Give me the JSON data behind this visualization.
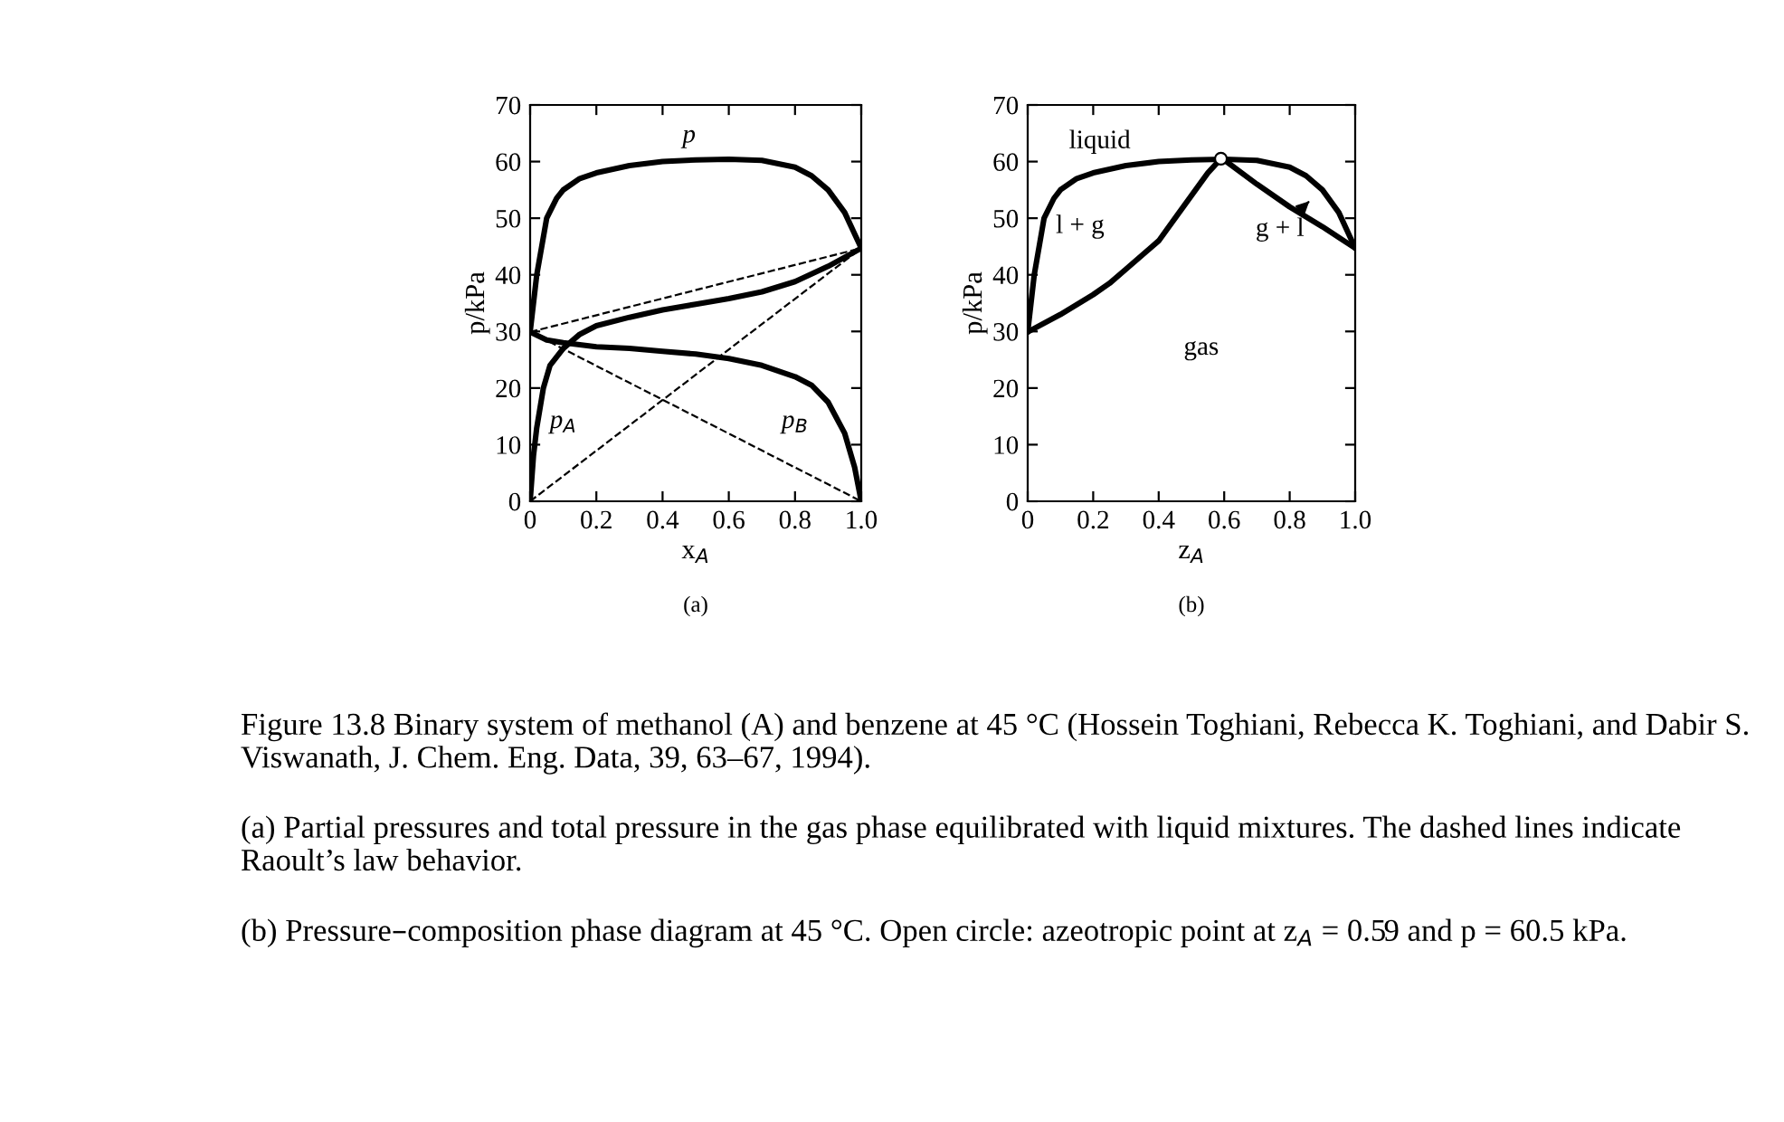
{
  "chart_data": [
    {
      "type": "line",
      "xlabel": "x$_{A}$",
      "ylabel": "p/kPa",
      "xlim": [
        0,
        1
      ],
      "ylim": [
        0,
        70
      ],
      "xticks": [
        0,
        0.2,
        0.4,
        0.6,
        0.8,
        {
          "value": 1,
          "label": "1.0"
        }
      ],
      "yticks": [
        0,
        10,
        20,
        30,
        40,
        50,
        60,
        70
      ],
      "grid": false,
      "series": [
        {
          "name": "p",
          "color": "#000000",
          "x": [
            0,
            0.02,
            0.05,
            0.08,
            0.1,
            0.15,
            0.2,
            0.3,
            0.4,
            0.5,
            0.6,
            0.7,
            0.8,
            0.85,
            0.9,
            0.95,
            1.0
          ],
          "values": [
            29.9,
            40,
            50,
            53.5,
            55,
            57,
            58,
            59.3,
            60,
            60.3,
            60.4,
            60.2,
            59,
            57.5,
            55,
            51,
            44.7
          ],
          "line_style": "solid"
        },
        {
          "name": "p$_{A}$",
          "color": "#000000",
          "x": [
            0,
            0.01,
            0.02,
            0.04,
            0.06,
            0.1,
            0.15,
            0.2,
            0.3,
            0.4,
            0.5,
            0.6,
            0.7,
            0.8,
            0.9,
            1.0
          ],
          "values": [
            0,
            8,
            13,
            20,
            24,
            27,
            29.5,
            31,
            32.5,
            33.8,
            34.8,
            35.8,
            37,
            38.8,
            41.5,
            44.7
          ],
          "line_style": "solid"
        },
        {
          "name": "p$_{B}$",
          "color": "#000000",
          "x": [
            0,
            0.05,
            0.1,
            0.2,
            0.3,
            0.4,
            0.5,
            0.6,
            0.7,
            0.8,
            0.85,
            0.9,
            0.95,
            0.98,
            1.0
          ],
          "values": [
            29.9,
            28.5,
            28,
            27.3,
            27,
            26.5,
            26,
            25.2,
            24,
            22,
            20.5,
            17.5,
            12,
            6,
            0
          ],
          "line_style": "solid"
        },
        {
          "color": "#000000",
          "x": [
            0,
            1
          ],
          "values": [
            29.9,
            44.7
          ],
          "line_style": "dashed"
        },
        {
          "color": "#000000",
          "x": [
            0,
            1
          ],
          "values": [
            29.9,
            0
          ],
          "line_style": "dashed"
        },
        {
          "color": "#000000",
          "x": [
            0,
            1
          ],
          "values": [
            0,
            44.7
          ],
          "line_style": "dashed"
        }
      ],
      "annotations": [
        "(a)"
      ]
    },
    {
      "type": "line",
      "xlabel": "z$_{A}$",
      "ylabel": "p/kPa",
      "xlim": [
        0,
        1
      ],
      "ylim": [
        0,
        70
      ],
      "xticks": [
        0,
        0.2,
        0.4,
        0.6,
        0.8,
        {
          "value": 1,
          "label": "1.0"
        }
      ],
      "yticks": [
        0,
        10,
        20,
        30,
        40,
        50,
        60,
        70
      ],
      "grid": false,
      "legend": false,
      "series": [
        {
          "color": "#000000",
          "x": [
            0,
            0.02,
            0.05,
            0.08,
            0.1,
            0.15,
            0.2,
            0.3,
            0.4,
            0.5,
            0.6,
            0.7,
            0.8,
            0.85,
            0.9,
            0.95,
            1.0
          ],
          "values": [
            29.9,
            40,
            50,
            53.5,
            55,
            57,
            58,
            59.3,
            60,
            60.3,
            60.4,
            60.2,
            59,
            57.5,
            55,
            51,
            44.7
          ]
        },
        {
          "color": "#000000",
          "x": [
            0,
            0.1,
            0.2,
            0.25,
            0.3,
            0.4,
            0.45,
            0.5,
            0.55,
            0.59,
            0.6,
            0.7,
            0.8,
            0.9,
            1.0
          ],
          "values": [
            29.9,
            33,
            36.5,
            38.5,
            41,
            46,
            50,
            54,
            58,
            60.5,
            60.3,
            56,
            52,
            48.5,
            44.7
          ]
        },
        {
          "type": "scatter",
          "color": "#ffffff",
          "marker": "circle",
          "x": [
            0.59
          ],
          "values": [
            60.5
          ]
        }
      ],
      "annotations": [
        "liquid",
        "l + g",
        "g + l",
        "gas",
        "(b)",
        "Figure 13.8 Binary system of methanol (A) and benzene at 45 °C (Hossein Toghiani, Rebecca K. Toghiani, and Dabir S. Viswanath, J. Chem. Eng. Data, 39, 63–67, 1994).",
        "(a) Partial pressures and total pressure in the gas phase equilibrated with liquid mixtures. The dashed lines indicate Raoult’s law behavior.",
        "(b) Pressure–composition phase diagram at 45 °C. Open circle: azeotropic point at z$_{A}$ = 0.59 and p = 60.5 kPa."
      ]
    }
  ]
}
